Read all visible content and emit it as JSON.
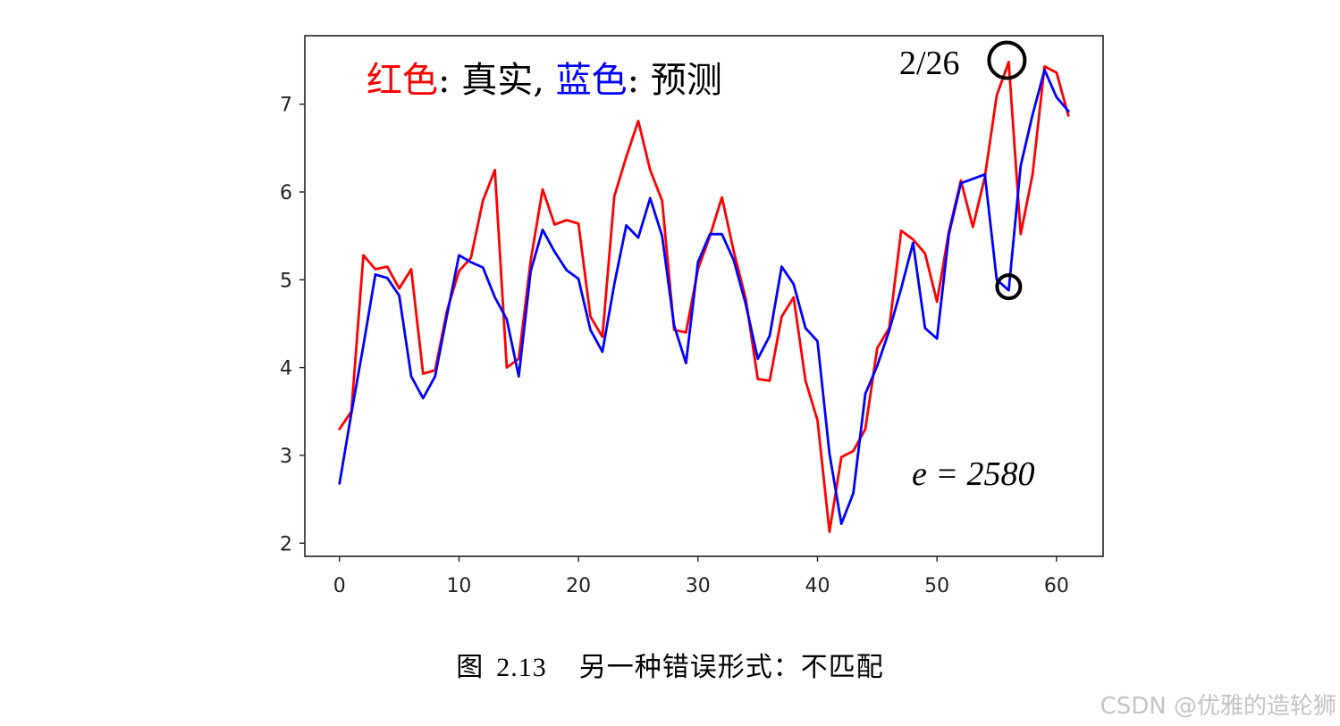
{
  "chart_data": {
    "type": "line",
    "legend": {
      "red_word": "红色",
      "sep1": ": 真实, ",
      "blue_word": "蓝色",
      "sep2": ": 预测"
    },
    "x": [
      0,
      1,
      2,
      3,
      4,
      5,
      6,
      7,
      8,
      9,
      10,
      11,
      12,
      13,
      14,
      15,
      16,
      17,
      18,
      19,
      20,
      21,
      22,
      23,
      24,
      25,
      26,
      27,
      28,
      29,
      30,
      31,
      32,
      33,
      34,
      35,
      36,
      37,
      38,
      39,
      40,
      41,
      42,
      43,
      44,
      45,
      46,
      47,
      48,
      49,
      50,
      51,
      52,
      53,
      54,
      55,
      56,
      57,
      58,
      59,
      60,
      61
    ],
    "xlim": [
      -2.9,
      63.9
    ],
    "ylim": [
      1.85,
      7.78
    ],
    "xticks": [
      0,
      10,
      20,
      30,
      40,
      50,
      60
    ],
    "yticks": [
      2,
      3,
      4,
      5,
      6,
      7
    ],
    "grid": false,
    "series": [
      {
        "name": "真实",
        "color": "#ff0000",
        "values": [
          3.3,
          3.5,
          5.28,
          5.12,
          5.15,
          4.9,
          5.12,
          3.93,
          3.97,
          4.65,
          5.1,
          5.25,
          5.9,
          6.25,
          4.0,
          4.1,
          5.22,
          6.03,
          5.63,
          5.68,
          5.64,
          4.58,
          4.35,
          5.95,
          6.4,
          6.81,
          6.25,
          5.9,
          4.43,
          4.4,
          5.12,
          5.5,
          5.94,
          5.32,
          4.78,
          3.87,
          3.85,
          4.58,
          4.8,
          3.85,
          3.4,
          2.13,
          2.98,
          3.05,
          3.3,
          4.22,
          4.45,
          5.56,
          5.46,
          5.3,
          4.75,
          5.55,
          6.13,
          5.6,
          6.17,
          7.1,
          7.48,
          5.52,
          6.2,
          7.43,
          7.36,
          6.87
        ]
      },
      {
        "name": "预测",
        "color": "#0000ff",
        "values": [
          2.68,
          3.48,
          4.25,
          5.06,
          5.02,
          4.82,
          3.9,
          3.65,
          3.9,
          4.6,
          5.28,
          5.2,
          5.14,
          4.8,
          4.55,
          3.9,
          5.1,
          5.57,
          5.32,
          5.11,
          5.01,
          4.43,
          4.18,
          4.95,
          5.62,
          5.48,
          5.93,
          5.5,
          4.48,
          4.05,
          5.2,
          5.52,
          5.52,
          5.22,
          4.72,
          4.1,
          4.36,
          5.15,
          4.95,
          4.45,
          4.3,
          3.02,
          2.22,
          2.57,
          3.7,
          4.02,
          4.42,
          4.9,
          5.42,
          4.45,
          4.33,
          5.52,
          6.1,
          6.15,
          6.2,
          5.0,
          4.88,
          6.3,
          6.88,
          7.39,
          7.08,
          6.92
        ]
      }
    ],
    "annotations": {
      "date_label": "2/26",
      "error_label": "e = 2580",
      "circle_x": 56
    }
  },
  "caption": {
    "prefix": "图",
    "number": "2.13",
    "text": "另一种错误形式：不匹配"
  },
  "watermark": "CSDN @优雅的造轮狮",
  "colors": {
    "true_series": "#ff0000",
    "pred_series": "#0000ff",
    "axes": "#222222"
  }
}
